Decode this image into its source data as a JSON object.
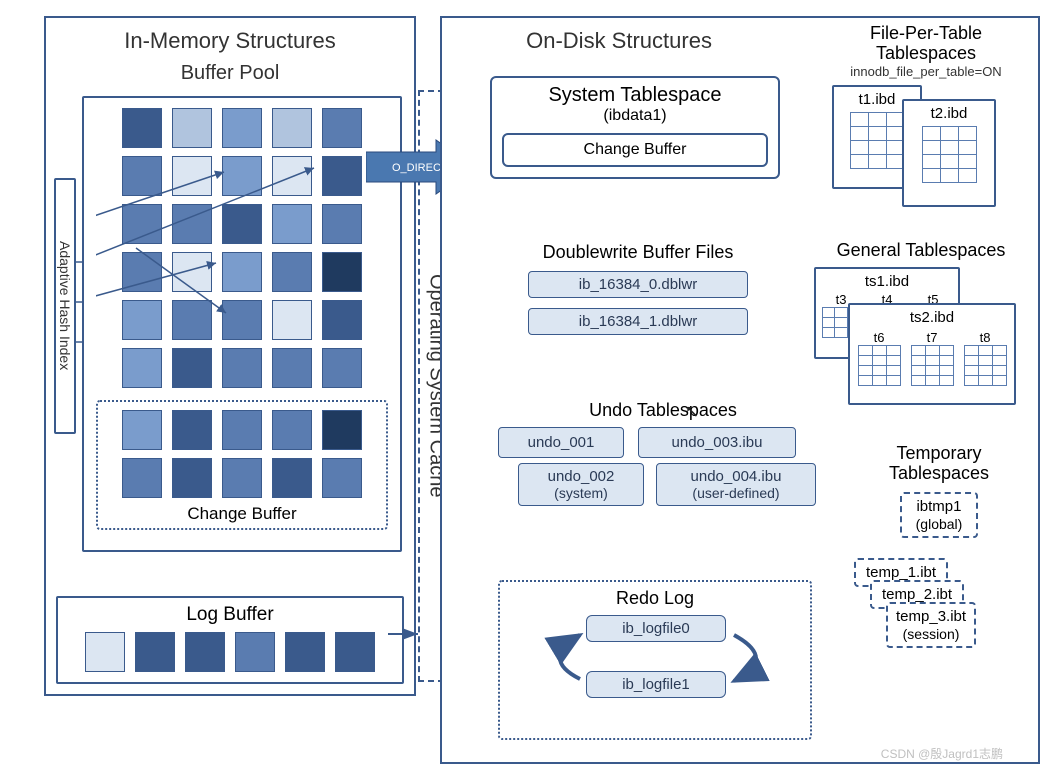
{
  "colors": {
    "border": "#3a5a8c",
    "text": "#333333",
    "chip_bg": "#dce6f2",
    "arrow_fill": "#4a78b0",
    "cell_shades": [
      "#dce6f2",
      "#b0c4de",
      "#7a9ccc",
      "#5a7cb0",
      "#3a5a8c",
      "#1f3a5f"
    ]
  },
  "left": {
    "title": "In-Memory Structures",
    "buffer_pool": {
      "title": "Buffer Pool",
      "cell_size": 36,
      "gap": 6,
      "main_grid": {
        "cols": 5,
        "rows": 6,
        "shades": [
          [
            4,
            1,
            2,
            1,
            3
          ],
          [
            3,
            0,
            2,
            0,
            4
          ],
          [
            3,
            3,
            4,
            2,
            3
          ],
          [
            3,
            0,
            2,
            3,
            5
          ],
          [
            2,
            3,
            3,
            0,
            4
          ],
          [
            2,
            4,
            3,
            3,
            3
          ]
        ]
      },
      "change_buffer": {
        "title": "Change Buffer",
        "rows": 2,
        "cols": 5,
        "shades": [
          [
            2,
            4,
            3,
            3,
            5
          ],
          [
            3,
            4,
            3,
            4,
            3
          ]
        ]
      },
      "hash_index_label": "Adaptive Hash Index"
    },
    "log_buffer": {
      "title": "Log Buffer",
      "cols": 6,
      "shades": [
        0,
        4,
        4,
        3,
        4,
        4
      ]
    },
    "o_direct_label": "O_DIRECT"
  },
  "os_cache_label": "Operating System Cache",
  "right": {
    "title": "On-Disk Structures",
    "system_tablespace": {
      "title": "System Tablespace",
      "subtitle": "(ibdata1)",
      "inner": "Change Buffer"
    },
    "file_per_table": {
      "title": "File-Per-Table",
      "title2": "Tablespaces",
      "note": "innodb_file_per_table=ON",
      "files": [
        "t1.ibd",
        "t2.ibd"
      ]
    },
    "doublewrite": {
      "title": "Doublewrite Buffer Files",
      "files": [
        "ib_16384_0.dblwr",
        "ib_16384_1.dblwr"
      ]
    },
    "general_tablespaces": {
      "title": "General Tablespaces",
      "ts1": {
        "label": "ts1.ibd",
        "tables": [
          "t3",
          "t4",
          "t5"
        ]
      },
      "ts2": {
        "label": "ts2.ibd",
        "tables": [
          "t6",
          "t7",
          "t8"
        ]
      }
    },
    "undo": {
      "title": "Undo Tablespaces",
      "files": [
        {
          "name": "undo_001",
          "sub": ""
        },
        {
          "name": "undo_003.ibu",
          "sub": ""
        },
        {
          "name": "undo_002",
          "sub": "(system)"
        },
        {
          "name": "undo_004.ibu",
          "sub": "(user-defined)"
        }
      ]
    },
    "temp": {
      "title": "Temporary",
      "title2": "Tablespaces",
      "global": {
        "name": "ibtmp1",
        "sub": "(global)"
      },
      "sessions": [
        "temp_1.ibt",
        "temp_2.ibt",
        "temp_3.ibt"
      ],
      "session_sub": "(session)"
    },
    "redo": {
      "title": "Redo Log",
      "files": [
        "ib_logfile0",
        "ib_logfile1"
      ]
    }
  },
  "watermark": "CSDN @殷Jagrd1志鹏"
}
